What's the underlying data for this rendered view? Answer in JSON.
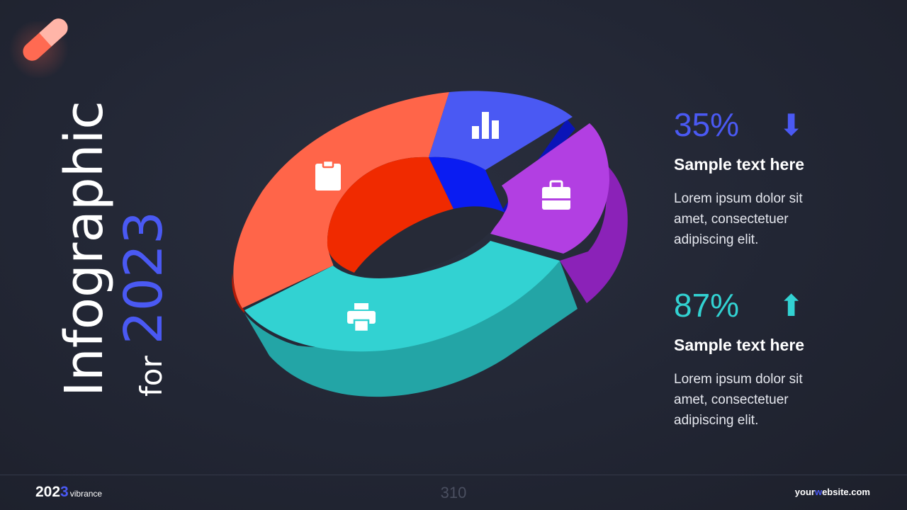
{
  "title": {
    "main": "Infographic",
    "for": "for",
    "year": "2023"
  },
  "colors": {
    "accent_blue": "#4a59f3",
    "teal": "#32d2d2",
    "segment_orange": "#ff6549",
    "segment_blue": "#4a59f3",
    "segment_purple": "#b23fe2",
    "segment_teal": "#32d2d2"
  },
  "diagram": {
    "segments": [
      {
        "icon": "clipboard-icon",
        "color": "#ff6549"
      },
      {
        "icon": "bar-chart-icon",
        "color": "#4a59f3"
      },
      {
        "icon": "briefcase-icon",
        "color": "#b23fe2"
      },
      {
        "icon": "printer-icon",
        "color": "#32d2d2"
      }
    ]
  },
  "stats": [
    {
      "value": "35%",
      "arrow": "⬇",
      "label": "Sample text here",
      "body": "Lorem ipsum dolor sit amet, consectetuer adipiscing elit."
    },
    {
      "value": "87%",
      "arrow": "⬆",
      "label": "Sample text here",
      "body": "Lorem ipsum dolor sit amet, consectetuer adipiscing elit."
    }
  ],
  "footer": {
    "brand_year_a": "202",
    "brand_year_b": "3",
    "brand_name": "vibrance",
    "page_number": "310",
    "website_a": "your",
    "website_b": "w",
    "website_c": "ebsite.com"
  }
}
